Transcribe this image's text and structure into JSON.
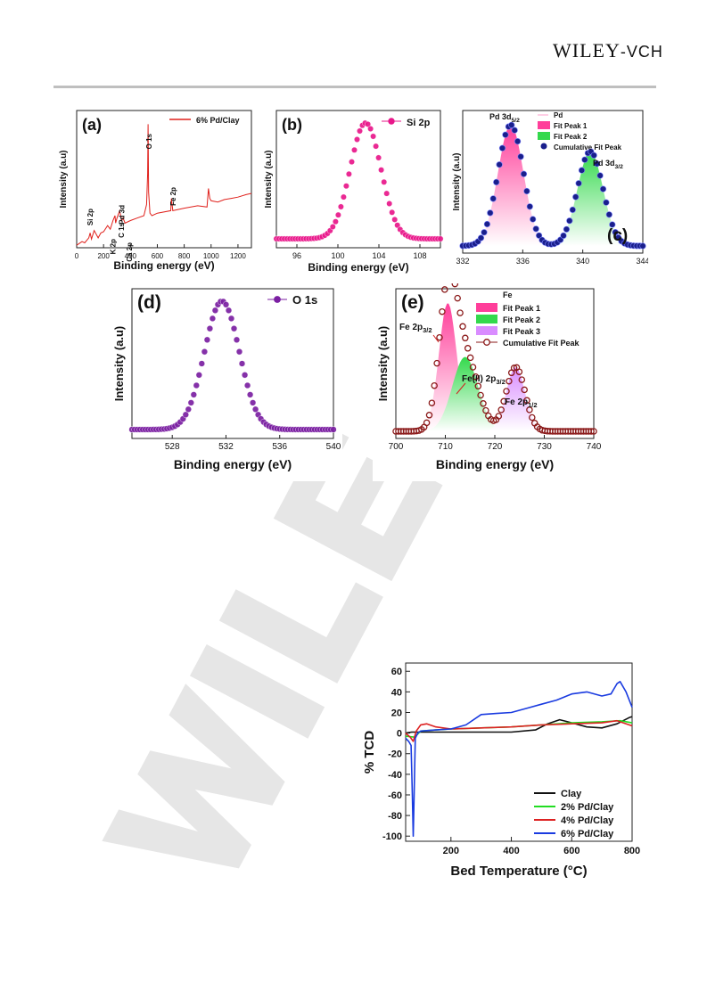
{
  "header": {
    "brand": "WILEY",
    "brand_suffix": "-VCH"
  },
  "chart_data": [
    {
      "id": "a",
      "type": "line",
      "panel_label": "(a)",
      "xlabel": "Binding energy (eV)",
      "ylabel": "Intensity (a.u)",
      "xlim": [
        0,
        1300
      ],
      "xticks": [
        0,
        200,
        400,
        600,
        800,
        1000,
        1200
      ],
      "legend": [
        "6% Pd/Clay"
      ],
      "color": "#e0201b",
      "series": [
        {
          "name": "6% Pd/Clay",
          "x": [
            0,
            40,
            60,
            90,
            100,
            110,
            130,
            150,
            160,
            180,
            200,
            230,
            250,
            270,
            285,
            290,
            300,
            320,
            335,
            345,
            360,
            400,
            450,
            500,
            520,
            528,
            531,
            535,
            545,
            560,
            600,
            700,
            705,
            715,
            800,
            900,
            970,
            980,
            990,
            1000,
            1050,
            1100,
            1150,
            1200,
            1260,
            1300
          ],
          "y": [
            2,
            5,
            4,
            8,
            12,
            7,
            14,
            10,
            8,
            12,
            13,
            18,
            15,
            22,
            26,
            20,
            24,
            30,
            22,
            24,
            20,
            22,
            24,
            26,
            35,
            60,
            100,
            45,
            28,
            26,
            28,
            30,
            40,
            30,
            32,
            34,
            33,
            48,
            40,
            38,
            37,
            39,
            40,
            41,
            43,
            44
          ]
        }
      ],
      "annotations": [
        "O 1s",
        "Fe 2p",
        "Si 2p",
        "K 2p",
        "C 1s",
        "Pd 3d",
        "Ca 2p"
      ]
    },
    {
      "id": "b",
      "type": "scatter",
      "panel_label": "(b)",
      "xlabel": "Binding energy (eV)",
      "ylabel": "Intensity (a.u)",
      "xlim": [
        94,
        110
      ],
      "xticks": [
        96,
        100,
        104,
        108
      ],
      "legend": [
        "Si 2p"
      ],
      "color": "#e8178a",
      "peaks": [
        {
          "center": 102.7,
          "height": 100,
          "width": 1.5
        }
      ]
    },
    {
      "id": "c",
      "type": "area",
      "panel_label": "(c)",
      "xlabel": "",
      "ylabel": "Intensity (a.u)",
      "xlim": [
        332,
        344
      ],
      "xticks": [
        332,
        336,
        340,
        344
      ],
      "legend": [
        "Pd",
        "Fit Peak 1",
        "Fit Peak 2",
        "Cumulative Fit Peak"
      ],
      "colors": {
        "pd": "#ff9fce",
        "fit1": "#ff3e9a",
        "fit2": "#33d94c",
        "cumulative": "#1a1f8c"
      },
      "peaks": [
        {
          "center": 335.2,
          "height": 100,
          "width": 0.85
        },
        {
          "center": 340.5,
          "height": 78,
          "width": 0.85
        }
      ],
      "annotations": [
        "Pd 3d5/2",
        "Pd 3d3/2"
      ]
    },
    {
      "id": "d",
      "type": "scatter",
      "panel_label": "(d)",
      "xlabel": "Binding energy (eV)",
      "ylabel": "Intensity (a.u)",
      "xlim": [
        525,
        540
      ],
      "xticks": [
        528,
        532,
        536,
        540
      ],
      "legend": [
        "O 1s"
      ],
      "color": "#7b1fa2",
      "peaks": [
        {
          "center": 531.7,
          "height": 100,
          "width": 1.3
        }
      ]
    },
    {
      "id": "e",
      "type": "area",
      "panel_label": "(e)",
      "xlabel": "Binding energy (eV)",
      "ylabel": "Intensity (a.u)",
      "xlim": [
        700,
        740
      ],
      "xticks": [
        700,
        710,
        720,
        730,
        740
      ],
      "legend": [
        "Fe",
        "Fit Peak 1",
        "Fit Peak 2",
        "Fit Peak 3",
        "Cumulative Fit Peak"
      ],
      "colors": {
        "fit1": "#ff3e9a",
        "fit2": "#33d94c",
        "fit3": "#d98cff",
        "cumulative": "#8b1a1a"
      },
      "peaks": [
        {
          "center": 710.5,
          "height": 100,
          "width": 1.8
        },
        {
          "center": 714.0,
          "height": 58,
          "width": 2.6
        },
        {
          "center": 724.2,
          "height": 50,
          "width": 1.9
        }
      ],
      "annotations": [
        "Fe 2p3/2",
        "Fe(II) 2p3/2",
        "Fe 2p1/2"
      ]
    },
    {
      "id": "tcd",
      "type": "line",
      "xlabel": "Bed Temperature (°C)",
      "ylabel": "% TCD",
      "xlim": [
        50,
        800
      ],
      "ylim": [
        -105,
        68
      ],
      "xticks": [
        200,
        400,
        600,
        800
      ],
      "yticks": [
        60,
        40,
        20,
        0,
        -20,
        -40,
        -60,
        -80,
        -100
      ],
      "legend_position": "bottom-right",
      "series": [
        {
          "name": "Clay",
          "color": "#111111",
          "x": [
            50,
            70,
            90,
            120,
            200,
            300,
            400,
            480,
            520,
            560,
            600,
            650,
            700,
            750,
            790,
            800
          ],
          "y": [
            0,
            1,
            1,
            1,
            1,
            1,
            1,
            3,
            9,
            13,
            10,
            6,
            5,
            9,
            15,
            16
          ]
        },
        {
          "name": "2% Pd/Clay",
          "color": "#22dd22",
          "x": [
            50,
            80,
            100,
            150,
            200,
            300,
            400,
            500,
            600,
            700,
            760,
            800
          ],
          "y": [
            -3,
            -4,
            2,
            3,
            4,
            5,
            6,
            8,
            10,
            11,
            12,
            10
          ]
        },
        {
          "name": "4% Pd/Clay",
          "color": "#dd2222",
          "x": [
            50,
            65,
            75,
            85,
            100,
            120,
            150,
            200,
            300,
            400,
            500,
            600,
            700,
            750,
            800
          ],
          "y": [
            0,
            -4,
            -8,
            2,
            8,
            9,
            6,
            4,
            5,
            6,
            8,
            9,
            10,
            12,
            7
          ]
        },
        {
          "name": "6% Pd/Clay",
          "color": "#1a3be0",
          "x": [
            50,
            60,
            68,
            72,
            75,
            78,
            82,
            90,
            100,
            150,
            200,
            250,
            300,
            350,
            400,
            450,
            500,
            550,
            600,
            650,
            700,
            730,
            750,
            760,
            780,
            800
          ],
          "y": [
            -5,
            -8,
            -12,
            -60,
            -100,
            -60,
            -5,
            0,
            2,
            3,
            4,
            8,
            18,
            19,
            20,
            24,
            28,
            32,
            38,
            40,
            36,
            38,
            48,
            50,
            40,
            25
          ]
        }
      ]
    }
  ]
}
